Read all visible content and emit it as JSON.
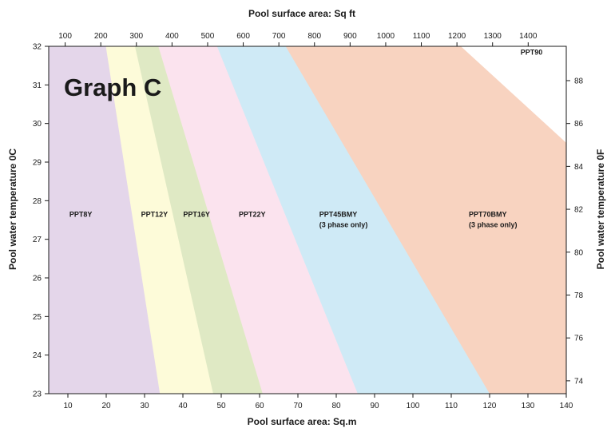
{
  "chart_data": {
    "type": "area",
    "title": "Graph C",
    "x_top": {
      "label": "Pool surface area: Sq ft",
      "ticks": [
        100,
        200,
        300,
        400,
        500,
        600,
        700,
        800,
        900,
        1000,
        1100,
        1200,
        1300,
        1400
      ]
    },
    "x_bottom": {
      "label": "Pool surface area: Sq.m",
      "range": [
        5,
        140
      ],
      "ticks": [
        10,
        20,
        30,
        40,
        50,
        60,
        70,
        80,
        90,
        100,
        110,
        120,
        130,
        140
      ]
    },
    "y_left": {
      "label": "Pool water temperature 0C",
      "range": [
        23,
        32
      ],
      "ticks": [
        23,
        24,
        25,
        26,
        27,
        28,
        29,
        30,
        31,
        32
      ]
    },
    "y_right": {
      "label": "Pool water temperature 0F",
      "ticks": [
        74,
        76,
        78,
        80,
        82,
        84,
        86,
        88
      ]
    },
    "grid": false,
    "regions": [
      {
        "name": "PPT8Y",
        "note": "",
        "color": "#e4d6ea",
        "bottom_x": 5,
        "top_x": 5,
        "label_at": [
          10.8,
          27
        ]
      },
      {
        "name": "PPT12Y",
        "note": "",
        "color": "#fdfbd9",
        "bottom_x": 34,
        "top_x": 19.9,
        "label_at": [
          29.5,
          27
        ]
      },
      {
        "name": "PPT16Y",
        "note": "",
        "color": "#dfe9c4",
        "bottom_x": 47.9,
        "top_x": 27.5,
        "label_at": [
          40.5,
          27
        ]
      },
      {
        "name": "PPT22Y",
        "note": "",
        "color": "#fbe3ee",
        "bottom_x": 60.8,
        "top_x": 33.6,
        "label_at": [
          55,
          27
        ]
      },
      {
        "name": "PPT45BMY",
        "note": "(3 phase only)",
        "color": "#cfeaf6",
        "bottom_x": 85.6,
        "top_x": 48.9,
        "label_at": [
          76,
          27
        ]
      },
      {
        "name": "PPT70BMY",
        "note": "(3 phase only)",
        "color": "#f8d3c0",
        "bottom_x": 120,
        "top_x": 66.8,
        "label_at": [
          115,
          27
        ]
      },
      {
        "name": "PPT90",
        "note": "",
        "color": "#ffffff",
        "bottom_x": 140,
        "top_x": 112.5,
        "right_y": 29.5,
        "label_at": [
          128.5,
          31.2
        ]
      }
    ]
  }
}
